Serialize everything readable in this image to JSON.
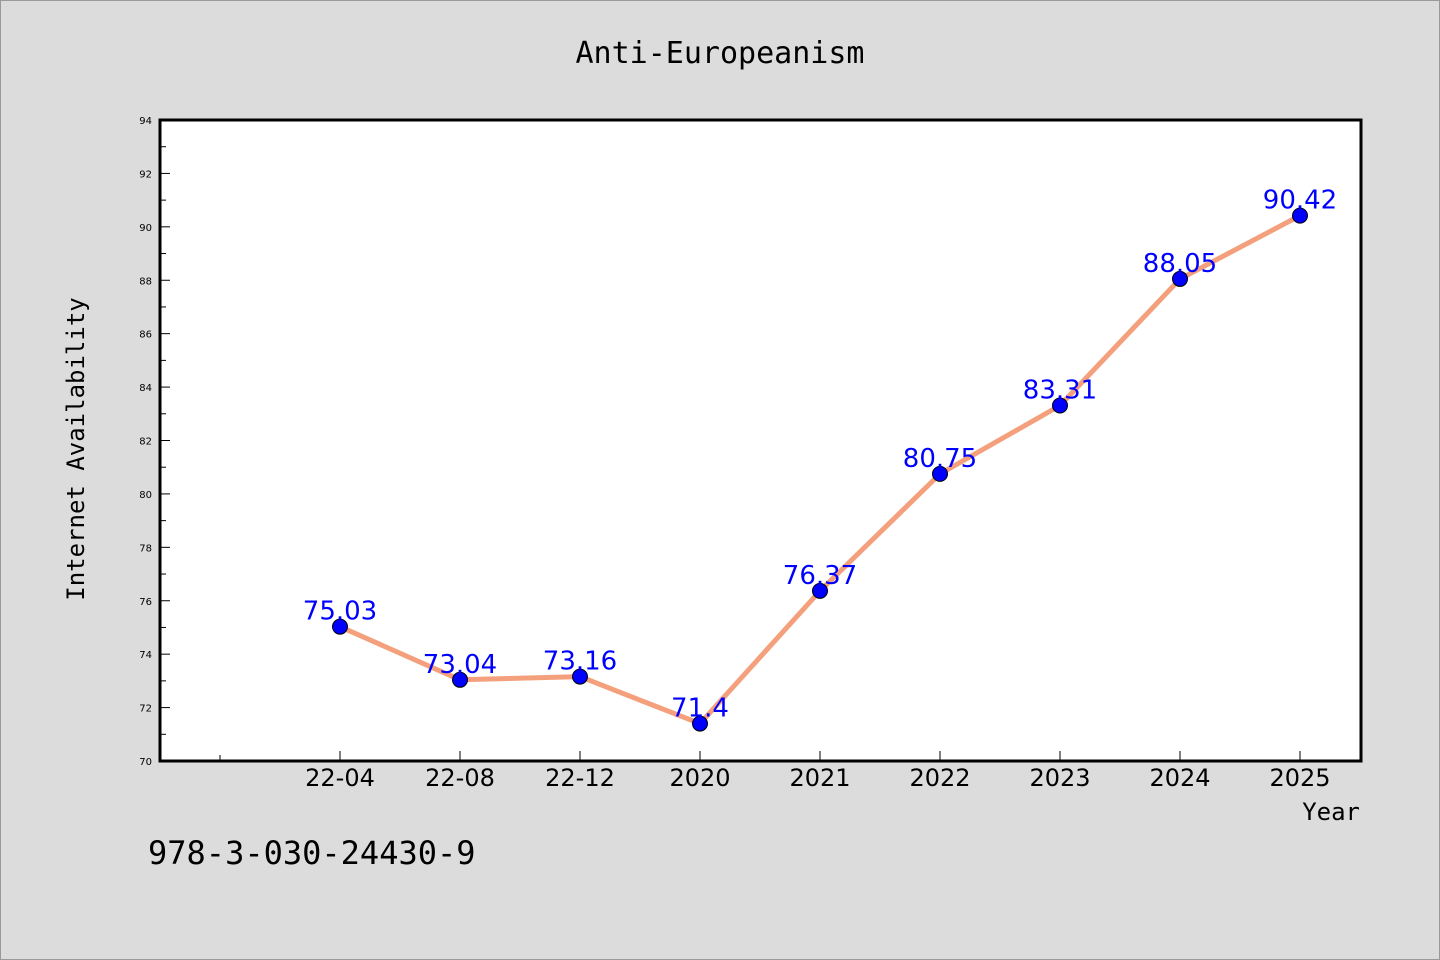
{
  "chart_data": {
    "type": "line",
    "title": "Anti-Europeanism",
    "xlabel": "Year",
    "ylabel": "Internet Availability",
    "categories": [
      "22-04",
      "22-08",
      "22-12",
      "2020",
      "2021",
      "2022",
      "2023",
      "2024",
      "2025"
    ],
    "series": [
      {
        "values": [
          75.03,
          73.04,
          73.16,
          71.4,
          76.37,
          80.75,
          83.31,
          88.05,
          90.42
        ],
        "data_labels": [
          "75.03",
          "73.04",
          "73.16",
          "71.4",
          "76.37",
          "80.75",
          "83.31",
          "88.05",
          "90.42"
        ]
      }
    ],
    "ylim": [
      70,
      94
    ],
    "yticks": [
      "70",
      "72",
      "74",
      "76",
      "78",
      "80",
      "82",
      "84",
      "86",
      "88",
      "90",
      "92",
      "94"
    ],
    "grid": false,
    "legend": "none",
    "colors": {
      "line": "#f4a07c",
      "marker": "#0000ff",
      "data_label": "#0000ff",
      "page_background": "#dcdcdc",
      "plot_background": "#ffffff"
    }
  },
  "footer_text": "978-3-030-24430-9"
}
